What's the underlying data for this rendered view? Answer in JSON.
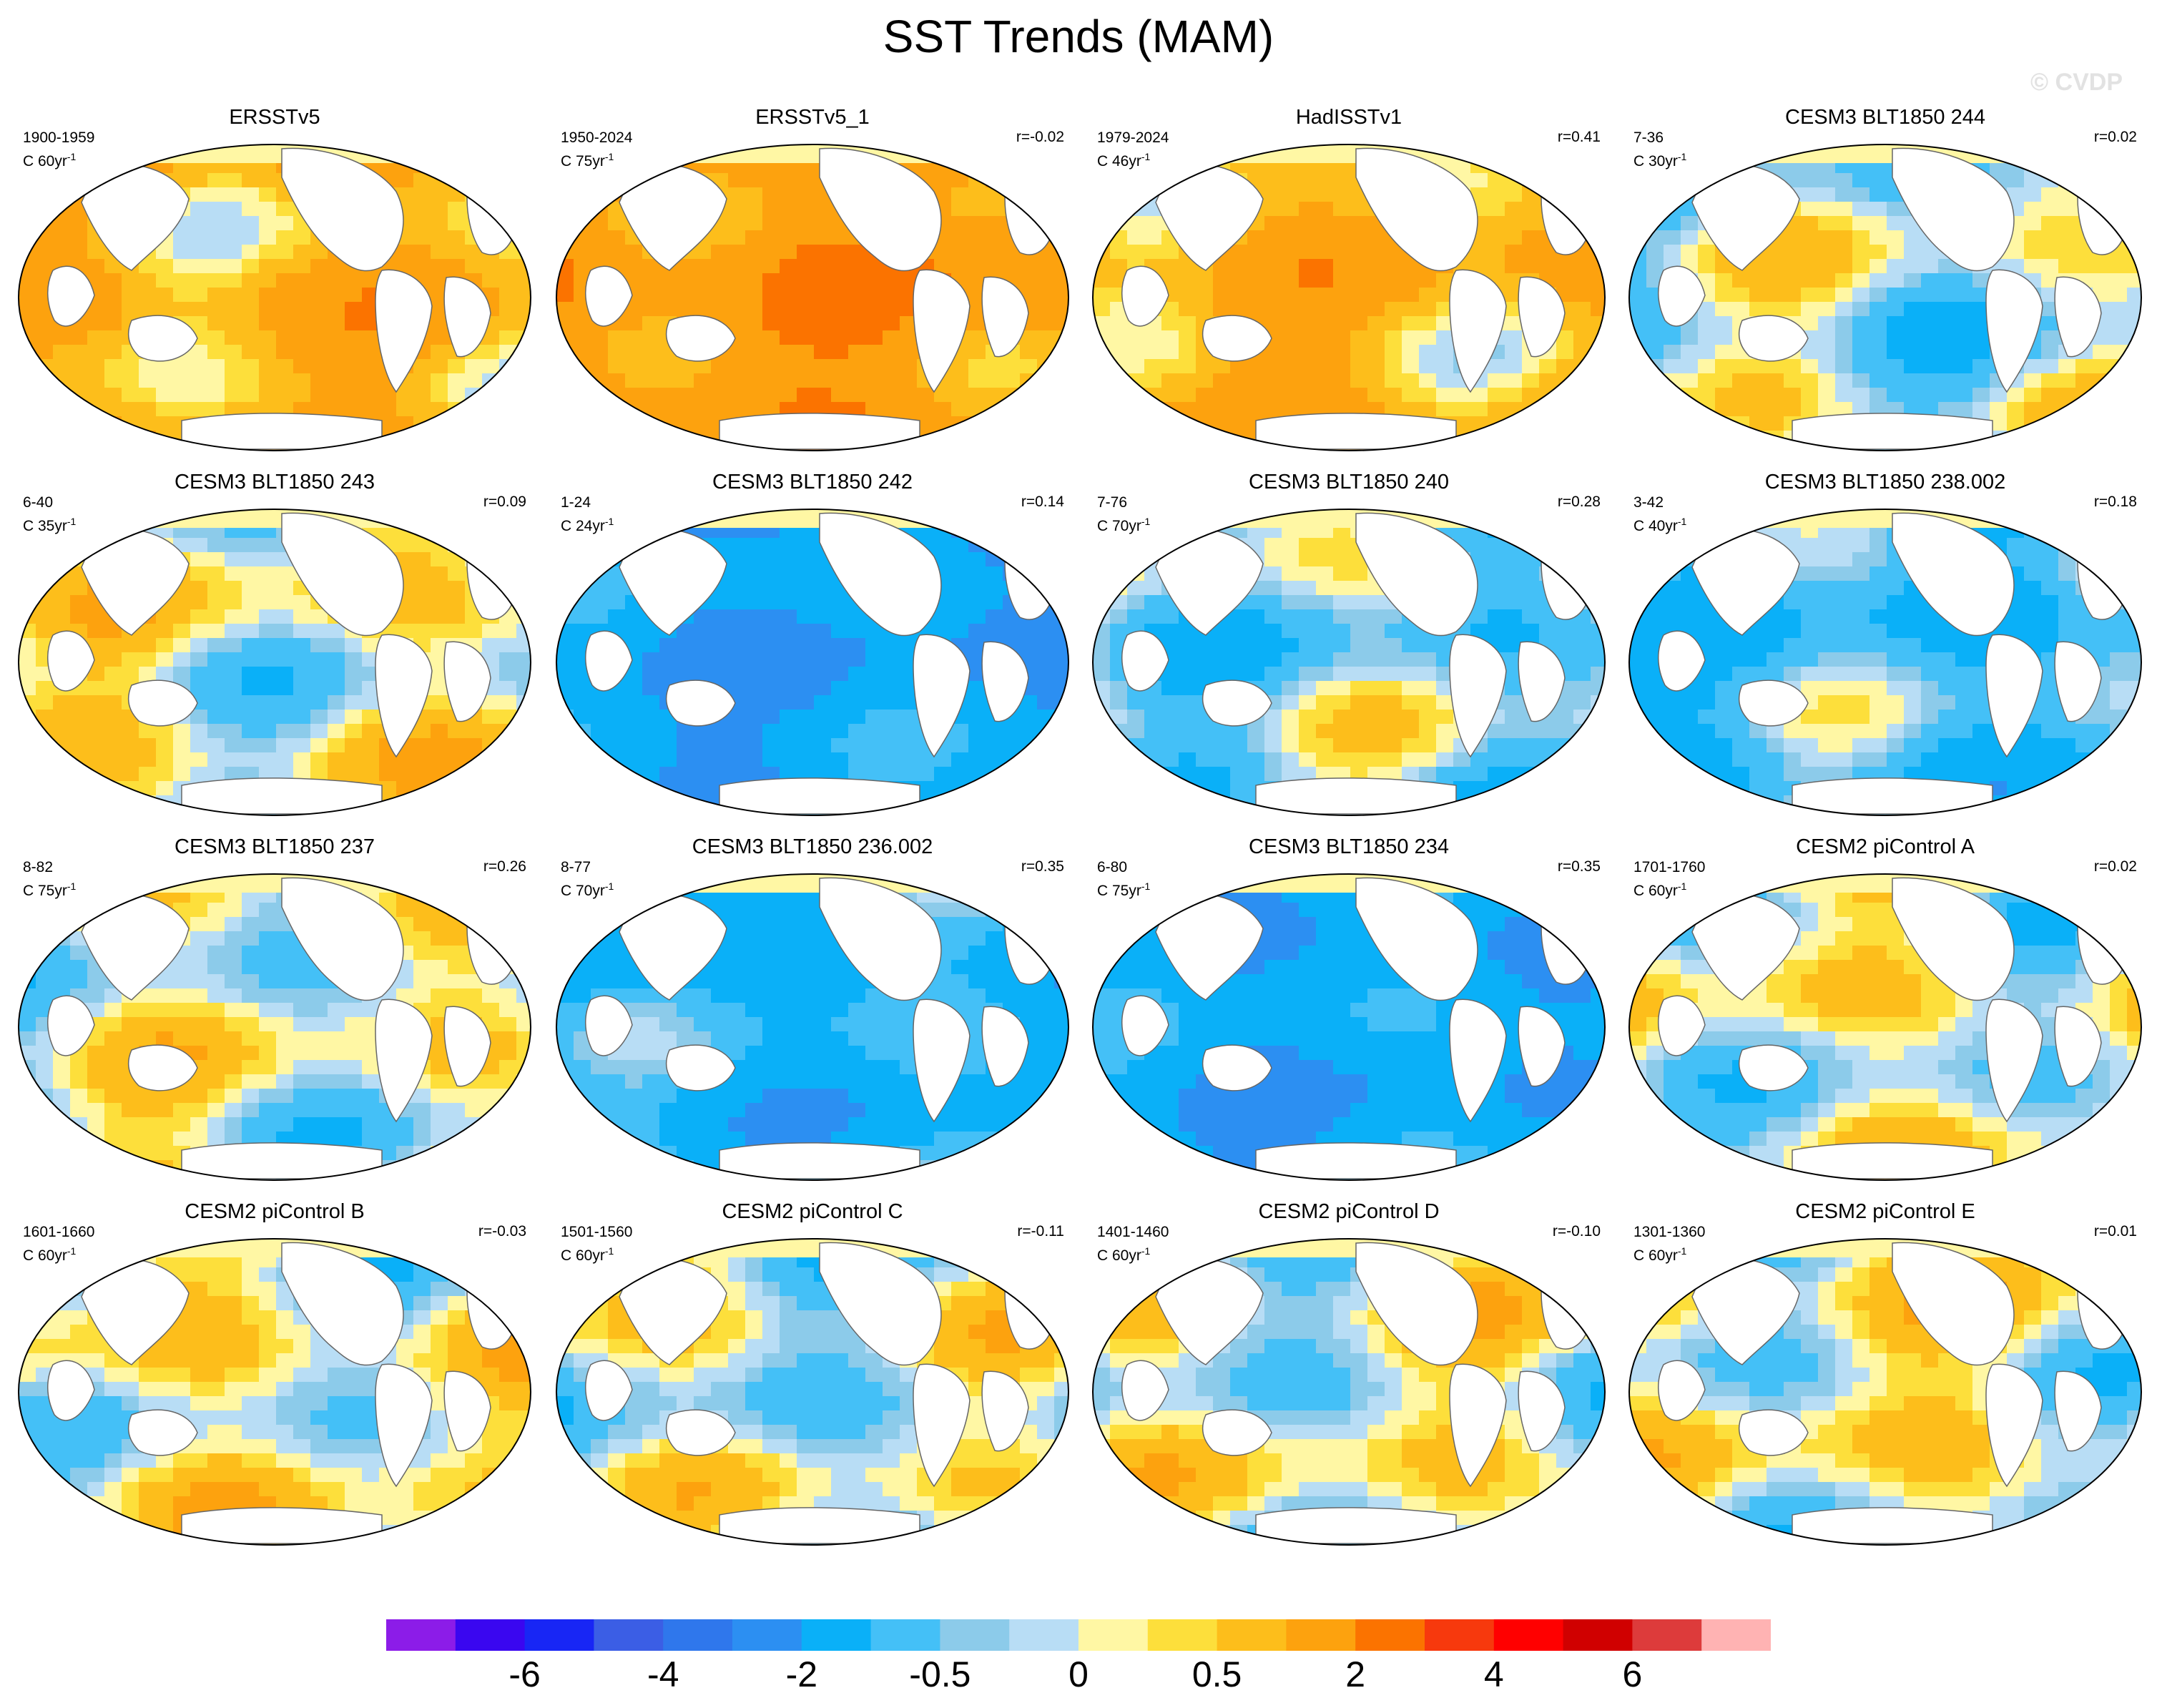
{
  "title": "SST Trends (MAM)",
  "watermark": "© CVDP",
  "panels": [
    {
      "title": "ERSSTv5",
      "years": "1900-1959",
      "trend_label": "C 60yr",
      "r": "",
      "base": 0.9
    },
    {
      "title": "ERSSTv5_1",
      "years": "1950-2024",
      "trend_label": "C 75yr",
      "r": "r=-0.02",
      "base": 1.6
    },
    {
      "title": "HadISSTv1",
      "years": "1979-2024",
      "trend_label": "C 46yr",
      "r": "r=0.41",
      "base": 0.9
    },
    {
      "title": "CESM3 BLT1850 244",
      "years": "7-36",
      "trend_label": "C 30yr",
      "r": "r=0.02",
      "base": -0.2
    },
    {
      "title": "CESM3 BLT1850 243",
      "years": "6-40",
      "trend_label": "C 35yr",
      "r": "r=0.09",
      "base": 0.1
    },
    {
      "title": "CESM3 BLT1850 242",
      "years": "1-24",
      "trend_label": "C 24yr",
      "r": "r=0.14",
      "base": -1.8
    },
    {
      "title": "CESM3 BLT1850 240",
      "years": "7-76",
      "trend_label": "C 70yr",
      "r": "r=0.28",
      "base": -0.4
    },
    {
      "title": "CESM3 BLT1850 238.002",
      "years": "3-42",
      "trend_label": "C 40yr",
      "r": "r=0.18",
      "base": -0.8
    },
    {
      "title": "CESM3 BLT1850 237",
      "years": "8-82",
      "trend_label": "C 75yr",
      "r": "r=0.26",
      "base": 0.0
    },
    {
      "title": "CESM3 BLT1850 236.002",
      "years": "8-77",
      "trend_label": "C 70yr",
      "r": "r=0.35",
      "base": -1.2
    },
    {
      "title": "CESM3 BLT1850 234",
      "years": "6-80",
      "trend_label": "C 75yr",
      "r": "r=0.35",
      "base": -1.6
    },
    {
      "title": "CESM2 piControl A",
      "years": "1701-1760",
      "trend_label": "C 60yr",
      "r": "r=0.02",
      "base": 0.0
    },
    {
      "title": "CESM2 piControl B",
      "years": "1601-1660",
      "trend_label": "C 60yr",
      "r": "r=-0.03",
      "base": 0.1
    },
    {
      "title": "CESM2 piControl C",
      "years": "1501-1560",
      "trend_label": "C 60yr",
      "r": "r=-0.11",
      "base": -0.1
    },
    {
      "title": "CESM2 piControl D",
      "years": "1401-1460",
      "trend_label": "C 60yr",
      "r": "r=-0.10",
      "base": 0.0
    },
    {
      "title": "CESM2 piControl E",
      "years": "1301-1360",
      "trend_label": "C 60yr",
      "r": "r=0.01",
      "base": 0.1
    }
  ],
  "chart_data": {
    "type": "heatmap",
    "title": "SST Trends (MAM)",
    "projection": "Robinson (global, Pacific-centered)",
    "units_superscript": "-1",
    "colorbar": {
      "colors": [
        "#8c1ce8",
        "#3a06f0",
        "#1826f5",
        "#3b5ee5",
        "#2f77ec",
        "#2c8ff2",
        "#0ab0f8",
        "#44c0f7",
        "#8ccbea",
        "#b8ddf5",
        "#fff7a4",
        "#fddf3b",
        "#fdbe1b",
        "#fda20e",
        "#fb7300",
        "#f7390d",
        "#ff0000",
        "#d00000",
        "#dd3b3b",
        "#ffb3b3"
      ],
      "tick_labels": [
        "-6",
        "-4",
        "-2",
        "-0.5",
        "0",
        "0.5",
        "2",
        "4",
        "6"
      ],
      "tick_edge_index": [
        2,
        4,
        6,
        8,
        10,
        12,
        14,
        16,
        18
      ]
    }
  }
}
